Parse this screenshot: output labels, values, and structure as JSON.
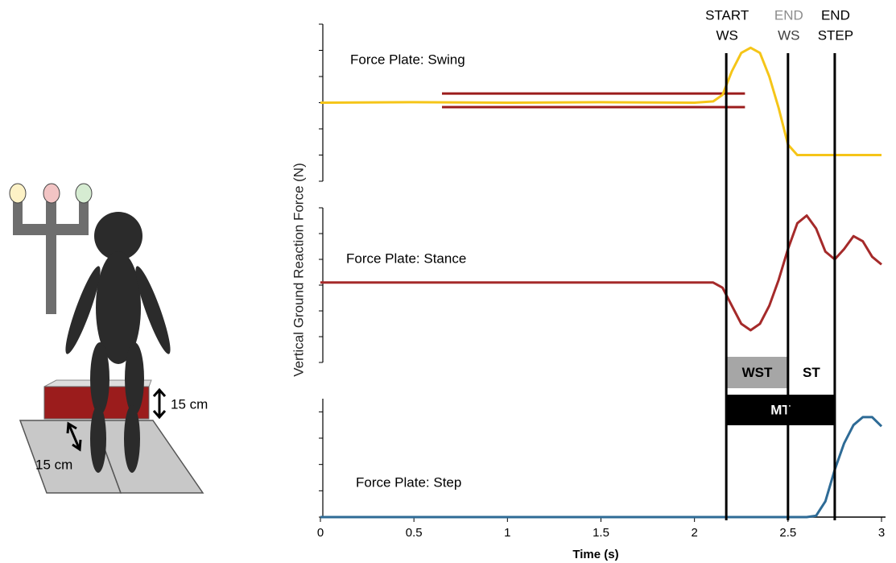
{
  "diagram": {
    "labels": [
      "15 cm",
      "15 cm"
    ]
  },
  "chart_data": {
    "type": "line",
    "xlabel": "Time (s)",
    "ylabel": "Vertical Ground Reaction Force (N)",
    "xlim": [
      0,
      3
    ],
    "xticks": [
      0,
      0.5,
      1,
      1.5,
      2,
      2.5,
      3
    ],
    "panels": [
      {
        "label": "Force Plate: Swing",
        "ylim": [
          0,
          6
        ],
        "yticks": [
          0,
          1,
          2,
          3,
          4,
          5,
          6
        ],
        "series": [
          {
            "color": "#f5c518",
            "x": [
              0,
              0.5,
              1,
              1.5,
              2,
              2.1,
              2.15,
              2.2,
              2.25,
              2.3,
              2.35,
              2.4,
              2.45,
              2.5,
              2.55,
              2.6,
              3.0
            ],
            "values": [
              3,
              3.02,
              3,
              3.02,
              3,
              3.05,
              3.3,
              4.2,
              4.9,
              5.1,
              4.9,
              4.0,
              2.8,
              1.4,
              1.0,
              1.0,
              1.0
            ]
          }
        ],
        "band": {
          "start": 0.65,
          "end": 2.27,
          "upper": 3.35,
          "lower": 2.83,
          "color": "#9b1c1c"
        }
      },
      {
        "label": "Force Plate: Stance",
        "ylim": [
          0,
          6
        ],
        "yticks": [
          0,
          1,
          2,
          3,
          4,
          5,
          6
        ],
        "series": [
          {
            "color": "#a52a2a",
            "x": [
              0,
              1,
              2,
              2.1,
              2.15,
              2.2,
              2.25,
              2.3,
              2.35,
              2.4,
              2.45,
              2.5,
              2.55,
              2.6,
              2.65,
              2.7,
              2.75,
              2.8,
              2.85,
              2.9,
              2.95,
              3.0
            ],
            "values": [
              3.1,
              3.1,
              3.1,
              3.1,
              2.9,
              2.2,
              1.5,
              1.25,
              1.5,
              2.2,
              3.2,
              4.4,
              5.4,
              5.7,
              5.2,
              4.3,
              4.0,
              4.4,
              4.9,
              4.7,
              4.1,
              3.8
            ]
          }
        ]
      },
      {
        "label": "Force Plate: Step",
        "ylim": [
          0,
          4.5
        ],
        "yticks": [
          0,
          1,
          2,
          3,
          4
        ],
        "series": [
          {
            "color": "#2e6b96",
            "x": [
              0,
              2,
              2.6,
              2.65,
              2.7,
              2.75,
              2.8,
              2.85,
              2.9,
              2.95,
              3.0
            ],
            "values": [
              0,
              0,
              0,
              0.05,
              0.6,
              1.8,
              2.8,
              3.5,
              3.8,
              3.8,
              3.45
            ]
          }
        ]
      }
    ],
    "events": [
      {
        "lines": [
          "START",
          "WS"
        ],
        "colors": [
          "#000000",
          "#000000"
        ],
        "x": 2.17
      },
      {
        "lines": [
          "END",
          "WS"
        ],
        "colors": [
          "#8c8c8c",
          "#404040"
        ],
        "x": 2.5
      },
      {
        "lines": [
          "END",
          "STEP"
        ],
        "colors": [
          "#000000",
          "#000000"
        ],
        "x": 2.75
      }
    ],
    "intervals": [
      {
        "label": "WST",
        "start": 2.17,
        "end": 2.5,
        "color": "#a6a6a6",
        "text_color": "#000000"
      },
      {
        "label": "ST",
        "start": 2.5,
        "end": 2.75,
        "color": "#ffffff",
        "text_color": "#000000"
      },
      {
        "label": "MT",
        "start": 2.17,
        "end": 2.75,
        "color": "#000000",
        "text_color": "#ffffff"
      }
    ]
  }
}
